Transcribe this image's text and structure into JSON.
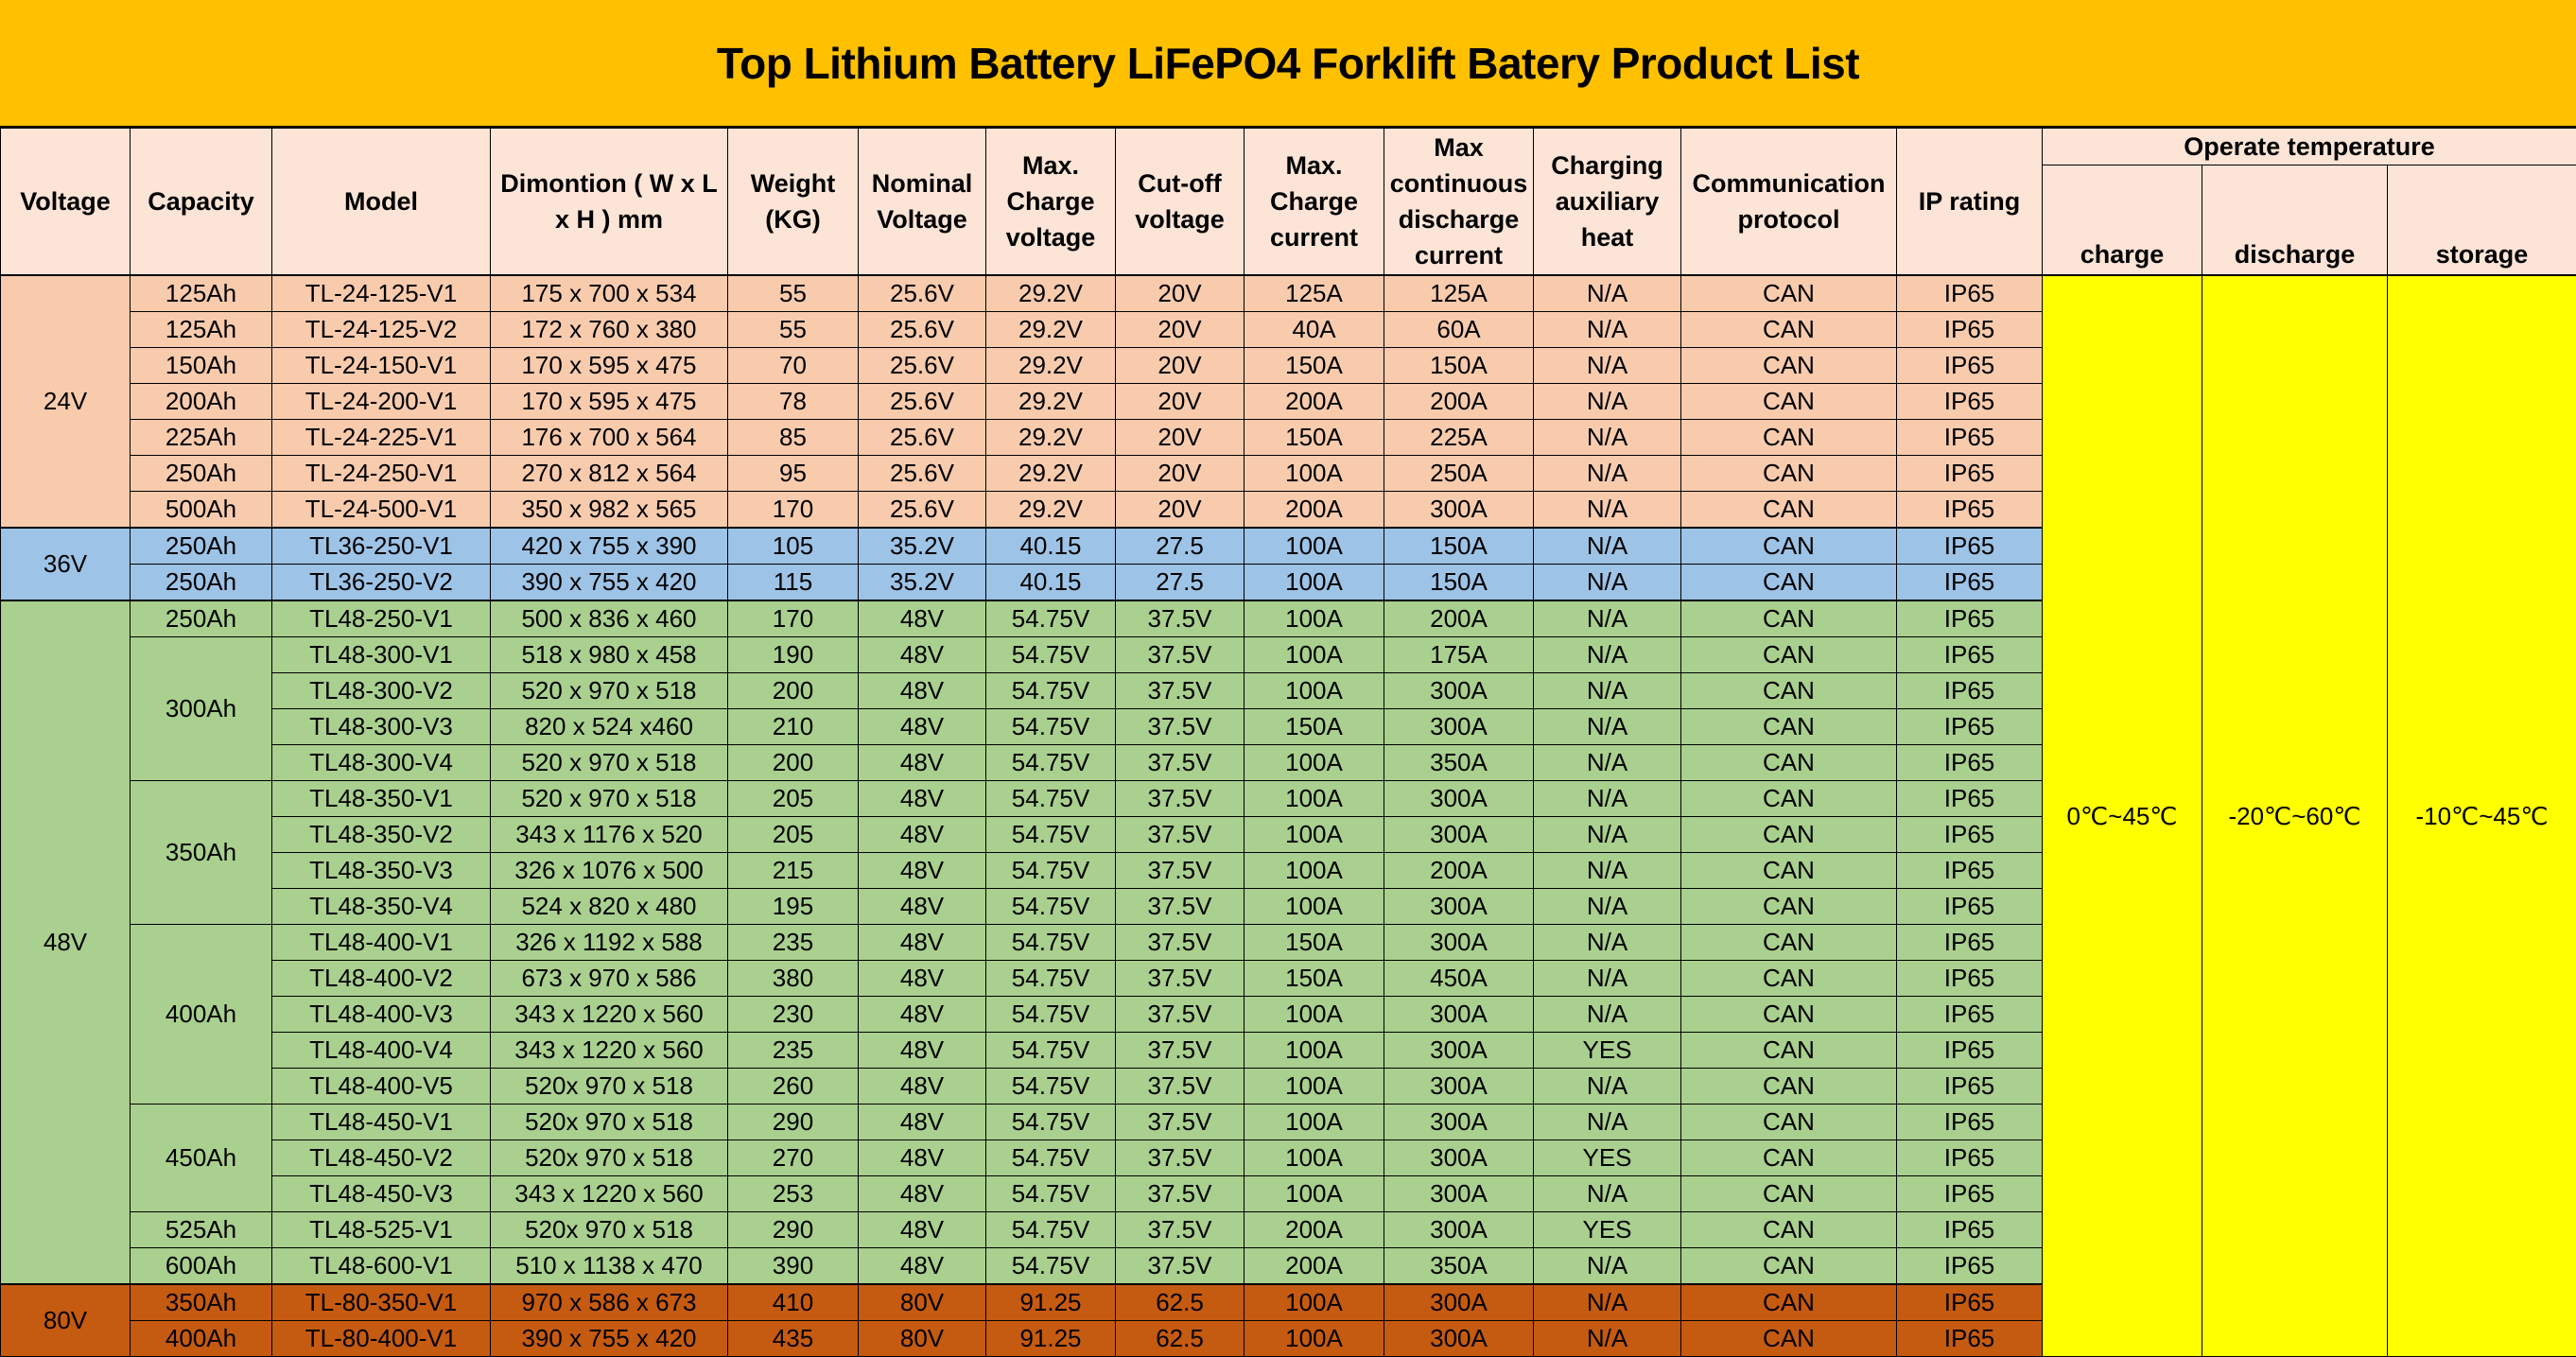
{
  "title": "Top Lithium Battery LiFePO4 Forklift Batery Product List",
  "colors": {
    "title_bg": "#ffc000",
    "header_bg": "#fce4d6",
    "group_24v": "#f8cbad",
    "group_36v": "#9dc3e6",
    "group_48v": "#a9d08e",
    "group_80v": "#c55a11",
    "temperature_bg": "#ffff00"
  },
  "headers": {
    "voltage": "Voltage",
    "capacity": "Capacity",
    "model": "Model",
    "dimension": "Dimontion ( W x L x H ) mm",
    "weight": "Weight (KG)",
    "nominal_voltage": "Nominal Voltage",
    "max_charge_voltage": "Max. Charge voltage",
    "cutoff_voltage": "Cut-off voltage",
    "max_charge_current": "Max. Charge current",
    "max_discharge_current": "Max continuous discharge current",
    "charging_heat": "Charging auxiliary heat",
    "protocol": "Communication protocol",
    "ip_rating": "IP rating",
    "operate_temperature": "Operate temperature",
    "temp_charge": "charge",
    "temp_discharge": "discharge",
    "temp_storage": "storage"
  },
  "temperature": {
    "charge": "0℃~45℃",
    "discharge": "-20℃~60℃",
    "storage": "-10℃~45℃"
  },
  "groups": {
    "v24": "24V",
    "v36": "36V",
    "v48": "48V",
    "v80": "80V"
  },
  "capacity_groups": {
    "c300": "300Ah",
    "c350": "350Ah",
    "c400": "400Ah",
    "c450": "450Ah"
  },
  "rows": [
    {
      "capacity": "125Ah",
      "model": "TL-24-125-V1",
      "dim": "175 x 700 x 534",
      "weight": "55",
      "nominal": "25.6V",
      "max_charge_v": "29.2V",
      "cutoff": "20V",
      "max_charge_a": "125A",
      "max_discharge_a": "125A",
      "heat": "N/A",
      "protocol": "CAN",
      "ip": "IP65"
    },
    {
      "capacity": "125Ah",
      "model": "TL-24-125-V2",
      "dim": "172 x 760 x 380",
      "weight": "55",
      "nominal": "25.6V",
      "max_charge_v": "29.2V",
      "cutoff": "20V",
      "max_charge_a": "40A",
      "max_discharge_a": "60A",
      "heat": "N/A",
      "protocol": "CAN",
      "ip": "IP65"
    },
    {
      "capacity": "150Ah",
      "model": "TL-24-150-V1",
      "dim": "170 x 595 x 475",
      "weight": "70",
      "nominal": "25.6V",
      "max_charge_v": "29.2V",
      "cutoff": "20V",
      "max_charge_a": "150A",
      "max_discharge_a": "150A",
      "heat": "N/A",
      "protocol": "CAN",
      "ip": "IP65"
    },
    {
      "capacity": "200Ah",
      "model": "TL-24-200-V1",
      "dim": "170 x 595 x 475",
      "weight": "78",
      "nominal": "25.6V",
      "max_charge_v": "29.2V",
      "cutoff": "20V",
      "max_charge_a": "200A",
      "max_discharge_a": "200A",
      "heat": "N/A",
      "protocol": "CAN",
      "ip": "IP65"
    },
    {
      "capacity": "225Ah",
      "model": "TL-24-225-V1",
      "dim": "176 x 700 x 564",
      "weight": "85",
      "nominal": "25.6V",
      "max_charge_v": "29.2V",
      "cutoff": "20V",
      "max_charge_a": "150A",
      "max_discharge_a": "225A",
      "heat": "N/A",
      "protocol": "CAN",
      "ip": "IP65"
    },
    {
      "capacity": "250Ah",
      "model": "TL-24-250-V1",
      "dim": "270 x 812 x 564",
      "weight": "95",
      "nominal": "25.6V",
      "max_charge_v": "29.2V",
      "cutoff": "20V",
      "max_charge_a": "100A",
      "max_discharge_a": "250A",
      "heat": "N/A",
      "protocol": "CAN",
      "ip": "IP65"
    },
    {
      "capacity": "500Ah",
      "model": "TL-24-500-V1",
      "dim": "350 x 982 x 565",
      "weight": "170",
      "nominal": "25.6V",
      "max_charge_v": "29.2V",
      "cutoff": "20V",
      "max_charge_a": "200A",
      "max_discharge_a": "300A",
      "heat": "N/A",
      "protocol": "CAN",
      "ip": "IP65"
    },
    {
      "capacity": "250Ah",
      "model": "TL36-250-V1",
      "dim": "420 x 755 x 390",
      "weight": "105",
      "nominal": "35.2V",
      "max_charge_v": "40.15",
      "cutoff": "27.5",
      "max_charge_a": "100A",
      "max_discharge_a": "150A",
      "heat": "N/A",
      "protocol": "CAN",
      "ip": "IP65"
    },
    {
      "capacity": "250Ah",
      "model": "TL36-250-V2",
      "dim": "390 x 755 x 420",
      "weight": "115",
      "nominal": "35.2V",
      "max_charge_v": "40.15",
      "cutoff": "27.5",
      "max_charge_a": "100A",
      "max_discharge_a": "150A",
      "heat": "N/A",
      "protocol": "CAN",
      "ip": "IP65"
    },
    {
      "capacity": "250Ah",
      "model": "TL48-250-V1",
      "dim": "500 x 836 x 460",
      "weight": "170",
      "nominal": "48V",
      "max_charge_v": "54.75V",
      "cutoff": "37.5V",
      "max_charge_a": "100A",
      "max_discharge_a": "200A",
      "heat": "N/A",
      "protocol": "CAN",
      "ip": "IP65"
    },
    {
      "capacity": "300Ah",
      "model": "TL48-300-V1",
      "dim": "518 x 980 x 458",
      "weight": "190",
      "nominal": "48V",
      "max_charge_v": "54.75V",
      "cutoff": "37.5V",
      "max_charge_a": "100A",
      "max_discharge_a": "175A",
      "heat": "N/A",
      "protocol": "CAN",
      "ip": "IP65"
    },
    {
      "capacity": "300Ah",
      "model": "TL48-300-V2",
      "dim": "520 x 970 x 518",
      "weight": "200",
      "nominal": "48V",
      "max_charge_v": "54.75V",
      "cutoff": "37.5V",
      "max_charge_a": "100A",
      "max_discharge_a": "300A",
      "heat": "N/A",
      "protocol": "CAN",
      "ip": "IP65"
    },
    {
      "capacity": "300Ah",
      "model": "TL48-300-V3",
      "dim": "820 x 524 x460",
      "weight": "210",
      "nominal": "48V",
      "max_charge_v": "54.75V",
      "cutoff": "37.5V",
      "max_charge_a": "150A",
      "max_discharge_a": "300A",
      "heat": "N/A",
      "protocol": "CAN",
      "ip": "IP65"
    },
    {
      "capacity": "300Ah",
      "model": "TL48-300-V4",
      "dim": "520 x 970 x 518",
      "weight": "200",
      "nominal": "48V",
      "max_charge_v": "54.75V",
      "cutoff": "37.5V",
      "max_charge_a": "100A",
      "max_discharge_a": "350A",
      "heat": "N/A",
      "protocol": "CAN",
      "ip": "IP65"
    },
    {
      "capacity": "350Ah",
      "model": "TL48-350-V1",
      "dim": "520 x 970 x 518",
      "weight": "205",
      "nominal": "48V",
      "max_charge_v": "54.75V",
      "cutoff": "37.5V",
      "max_charge_a": "100A",
      "max_discharge_a": "300A",
      "heat": "N/A",
      "protocol": "CAN",
      "ip": "IP65"
    },
    {
      "capacity": "350Ah",
      "model": "TL48-350-V2",
      "dim": "343 x 1176 x 520",
      "weight": "205",
      "nominal": "48V",
      "max_charge_v": "54.75V",
      "cutoff": "37.5V",
      "max_charge_a": "100A",
      "max_discharge_a": "300A",
      "heat": "N/A",
      "protocol": "CAN",
      "ip": "IP65"
    },
    {
      "capacity": "350Ah",
      "model": "TL48-350-V3",
      "dim": "326 x 1076 x 500",
      "weight": "215",
      "nominal": "48V",
      "max_charge_v": "54.75V",
      "cutoff": "37.5V",
      "max_charge_a": "100A",
      "max_discharge_a": "200A",
      "heat": "N/A",
      "protocol": "CAN",
      "ip": "IP65"
    },
    {
      "capacity": "350Ah",
      "model": "TL48-350-V4",
      "dim": "524 x 820 x 480",
      "weight": "195",
      "nominal": "48V",
      "max_charge_v": "54.75V",
      "cutoff": "37.5V",
      "max_charge_a": "100A",
      "max_discharge_a": "300A",
      "heat": "N/A",
      "protocol": "CAN",
      "ip": "IP65"
    },
    {
      "capacity": "400Ah",
      "model": "TL48-400-V1",
      "dim": "326 x 1192 x 588",
      "weight": "235",
      "nominal": "48V",
      "max_charge_v": "54.75V",
      "cutoff": "37.5V",
      "max_charge_a": "150A",
      "max_discharge_a": "300A",
      "heat": "N/A",
      "protocol": "CAN",
      "ip": "IP65"
    },
    {
      "capacity": "400Ah",
      "model": "TL48-400-V2",
      "dim": "673 x 970 x 586",
      "weight": "380",
      "nominal": "48V",
      "max_charge_v": "54.75V",
      "cutoff": "37.5V",
      "max_charge_a": "150A",
      "max_discharge_a": "450A",
      "heat": "N/A",
      "protocol": "CAN",
      "ip": "IP65"
    },
    {
      "capacity": "400Ah",
      "model": "TL48-400-V3",
      "dim": "343 x 1220 x 560",
      "weight": "230",
      "nominal": "48V",
      "max_charge_v": "54.75V",
      "cutoff": "37.5V",
      "max_charge_a": "100A",
      "max_discharge_a": "300A",
      "heat": "N/A",
      "protocol": "CAN",
      "ip": "IP65"
    },
    {
      "capacity": "400Ah",
      "model": "TL48-400-V4",
      "dim": "343 x 1220 x 560",
      "weight": "235",
      "nominal": "48V",
      "max_charge_v": "54.75V",
      "cutoff": "37.5V",
      "max_charge_a": "100A",
      "max_discharge_a": "300A",
      "heat": "YES",
      "protocol": "CAN",
      "ip": "IP65"
    },
    {
      "capacity": "400Ah",
      "model": "TL48-400-V5",
      "dim": "520x 970 x 518",
      "weight": "260",
      "nominal": "48V",
      "max_charge_v": "54.75V",
      "cutoff": "37.5V",
      "max_charge_a": "100A",
      "max_discharge_a": "300A",
      "heat": "N/A",
      "protocol": "CAN",
      "ip": "IP65"
    },
    {
      "capacity": "450Ah",
      "model": "TL48-450-V1",
      "dim": "520x 970 x 518",
      "weight": "290",
      "nominal": "48V",
      "max_charge_v": "54.75V",
      "cutoff": "37.5V",
      "max_charge_a": "100A",
      "max_discharge_a": "300A",
      "heat": "N/A",
      "protocol": "CAN",
      "ip": "IP65"
    },
    {
      "capacity": "450Ah",
      "model": "TL48-450-V2",
      "dim": "520x 970 x 518",
      "weight": "270",
      "nominal": "48V",
      "max_charge_v": "54.75V",
      "cutoff": "37.5V",
      "max_charge_a": "100A",
      "max_discharge_a": "300A",
      "heat": "YES",
      "protocol": "CAN",
      "ip": "IP65"
    },
    {
      "capacity": "450Ah",
      "model": "TL48-450-V3",
      "dim": "343 x 1220 x 560",
      "weight": "253",
      "nominal": "48V",
      "max_charge_v": "54.75V",
      "cutoff": "37.5V",
      "max_charge_a": "100A",
      "max_discharge_a": "300A",
      "heat": "N/A",
      "protocol": "CAN",
      "ip": "IP65"
    },
    {
      "capacity": "525Ah",
      "model": "TL48-525-V1",
      "dim": "520x 970 x 518",
      "weight": "290",
      "nominal": "48V",
      "max_charge_v": "54.75V",
      "cutoff": "37.5V",
      "max_charge_a": "200A",
      "max_discharge_a": "300A",
      "heat": "YES",
      "protocol": "CAN",
      "ip": "IP65"
    },
    {
      "capacity": "600Ah",
      "model": "TL48-600-V1",
      "dim": "510 x 1138 x 470",
      "weight": "390",
      "nominal": "48V",
      "max_charge_v": "54.75V",
      "cutoff": "37.5V",
      "max_charge_a": "200A",
      "max_discharge_a": "350A",
      "heat": "N/A",
      "protocol": "CAN",
      "ip": "IP65"
    },
    {
      "capacity": "350Ah",
      "model": "TL-80-350-V1",
      "dim": "970 x 586 x 673",
      "weight": "410",
      "nominal": "80V",
      "max_charge_v": "91.25",
      "cutoff": "62.5",
      "max_charge_a": "100A",
      "max_discharge_a": "300A",
      "heat": "N/A",
      "protocol": "CAN",
      "ip": "IP65"
    },
    {
      "capacity": "400Ah",
      "model": "TL-80-400-V1",
      "dim": "390 x 755 x 420",
      "weight": "435",
      "nominal": "80V",
      "max_charge_v": "91.25",
      "cutoff": "62.5",
      "max_charge_a": "100A",
      "max_discharge_a": "300A",
      "heat": "N/A",
      "protocol": "CAN",
      "ip": "IP65"
    }
  ]
}
